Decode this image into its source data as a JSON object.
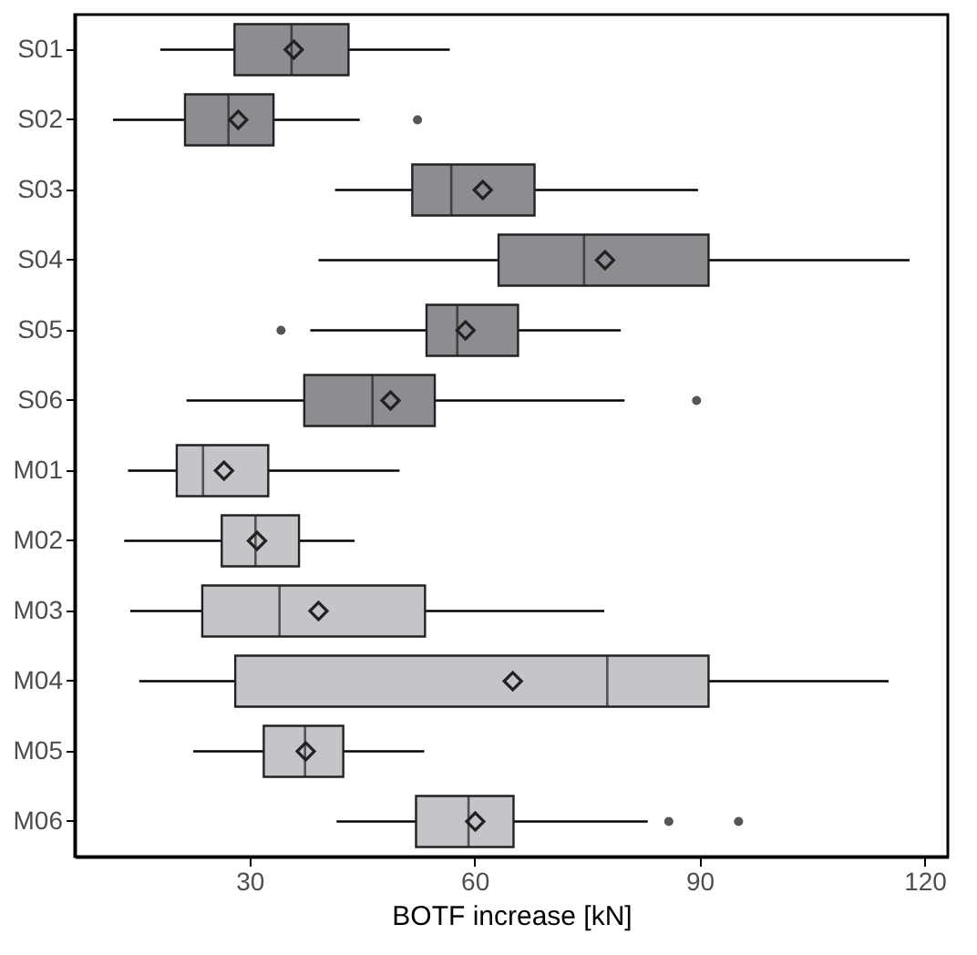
{
  "chart_data": {
    "type": "box",
    "orientation": "horizontal",
    "xlabel": "BOTF increase [kN]",
    "xlim": [
      6.7,
      123.1
    ],
    "xticks": [
      30,
      60,
      90,
      120
    ],
    "categories": [
      "S01",
      "S02",
      "S03",
      "S04",
      "S05",
      "S06",
      "M01",
      "M02",
      "M03",
      "M04",
      "M05",
      "M06"
    ],
    "colors": [
      "#8c8d90",
      "#8c8d90",
      "#8c8d90",
      "#8c8d90",
      "#8c8d90",
      "#8c8d90",
      "#c4c5c8",
      "#c4c5c8",
      "#c4c5c8",
      "#c4c5c8",
      "#c4c5c8",
      "#c4c5c8"
    ],
    "boxes": [
      {
        "low": 18.1,
        "q1": 28.0,
        "median": 35.6,
        "q3": 43.2,
        "high": 56.7,
        "mean": 35.9
      },
      {
        "low": 11.8,
        "q1": 21.4,
        "median": 27.2,
        "q3": 33.2,
        "high": 44.7,
        "mean": 28.5,
        "outliers": [
          52.4
        ]
      },
      {
        "low": 41.4,
        "q1": 51.7,
        "median": 56.9,
        "q3": 68.0,
        "high": 89.8,
        "mean": 61.1
      },
      {
        "low": 39.2,
        "q1": 63.2,
        "median": 74.6,
        "q3": 91.2,
        "high": 118.0,
        "mean": 77.4
      },
      {
        "low": 38.1,
        "q1": 53.6,
        "median": 57.7,
        "q3": 65.8,
        "high": 79.5,
        "mean": 58.8,
        "outliers": [
          34.2
        ]
      },
      {
        "low": 21.6,
        "q1": 37.3,
        "median": 46.4,
        "q3": 54.7,
        "high": 80.0,
        "mean": 48.8,
        "outliers": [
          89.6
        ]
      },
      {
        "low": 13.8,
        "q1": 20.3,
        "median": 23.8,
        "q3": 32.5,
        "high": 50.0,
        "mean": 26.6
      },
      {
        "low": 13.3,
        "q1": 26.3,
        "median": 30.8,
        "q3": 36.6,
        "high": 44.0,
        "mean": 31.0
      },
      {
        "low": 14.1,
        "q1": 23.7,
        "median": 34.0,
        "q3": 53.4,
        "high": 77.3,
        "mean": 39.2
      },
      {
        "low": 15.3,
        "q1": 28.1,
        "median": 77.7,
        "q3": 91.2,
        "high": 115.2,
        "mean": 65.1
      },
      {
        "low": 22.5,
        "q1": 31.9,
        "median": 37.4,
        "q3": 42.5,
        "high": 53.3,
        "mean": 37.5
      },
      {
        "low": 41.6,
        "q1": 52.2,
        "median": 59.2,
        "q3": 65.2,
        "high": 83.1,
        "mean": 60.1,
        "outliers": [
          85.9,
          95.2
        ]
      }
    ]
  }
}
